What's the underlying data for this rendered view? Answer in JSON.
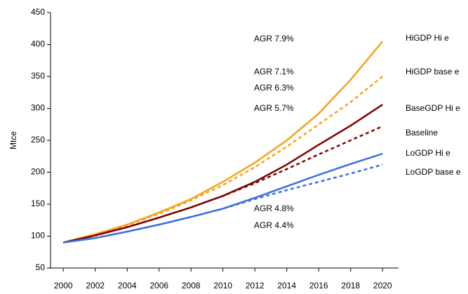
{
  "chart_data": {
    "type": "line",
    "y_label": "Mtce",
    "x": [
      2000,
      2002,
      2004,
      2006,
      2008,
      2010,
      2012,
      2014,
      2016,
      2018,
      2020
    ],
    "xlim": [
      1999.2,
      2021
    ],
    "xticks": [
      2000,
      2002,
      2004,
      2006,
      2008,
      2010,
      2012,
      2014,
      2016,
      2018,
      2020
    ],
    "ylim": [
      50,
      450
    ],
    "yticks": [
      50,
      100,
      150,
      200,
      250,
      300,
      350,
      400,
      450
    ],
    "series": [
      {
        "name": "HiGDP Hi e",
        "color": "#f7a21b",
        "dash": "solid",
        "values": [
          90,
          103,
          118,
          137,
          158,
          185,
          215,
          250,
          292,
          345,
          405
        ]
      },
      {
        "name": "HiGDP base e",
        "color": "#f7a21b",
        "dash": "dashed",
        "values": [
          90,
          102,
          117,
          135,
          156,
          180,
          208,
          240,
          275,
          310,
          350
        ]
      },
      {
        "name": "BaseGDP Hi e",
        "color": "#800000",
        "dash": "solid",
        "values": [
          90,
          101,
          114,
          129,
          145,
          163,
          185,
          212,
          243,
          273,
          306
        ]
      },
      {
        "name": "Baseline",
        "color": "#800000",
        "dash": "dashed",
        "values": [
          90,
          101,
          114,
          129,
          145,
          163,
          183,
          205,
          228,
          250,
          272
        ]
      },
      {
        "name": "LoGDP Hi e",
        "color": "#3c6fe0",
        "dash": "solid",
        "values": [
          90,
          97,
          107,
          118,
          130,
          143,
          160,
          178,
          196,
          213,
          229
        ]
      },
      {
        "name": "LoGDP base e",
        "color": "#3c6fe0",
        "dash": "dashed",
        "values": [
          90,
          97,
          107,
          118,
          130,
          143,
          158,
          172,
          185,
          198,
          212
        ]
      }
    ],
    "annotations": [
      "AGR 7.9%",
      "AGR 7.1%",
      "AGR 6.3%",
      "AGR 5.7%",
      "AGR 4.8%",
      "AGR 4.4%"
    ]
  }
}
